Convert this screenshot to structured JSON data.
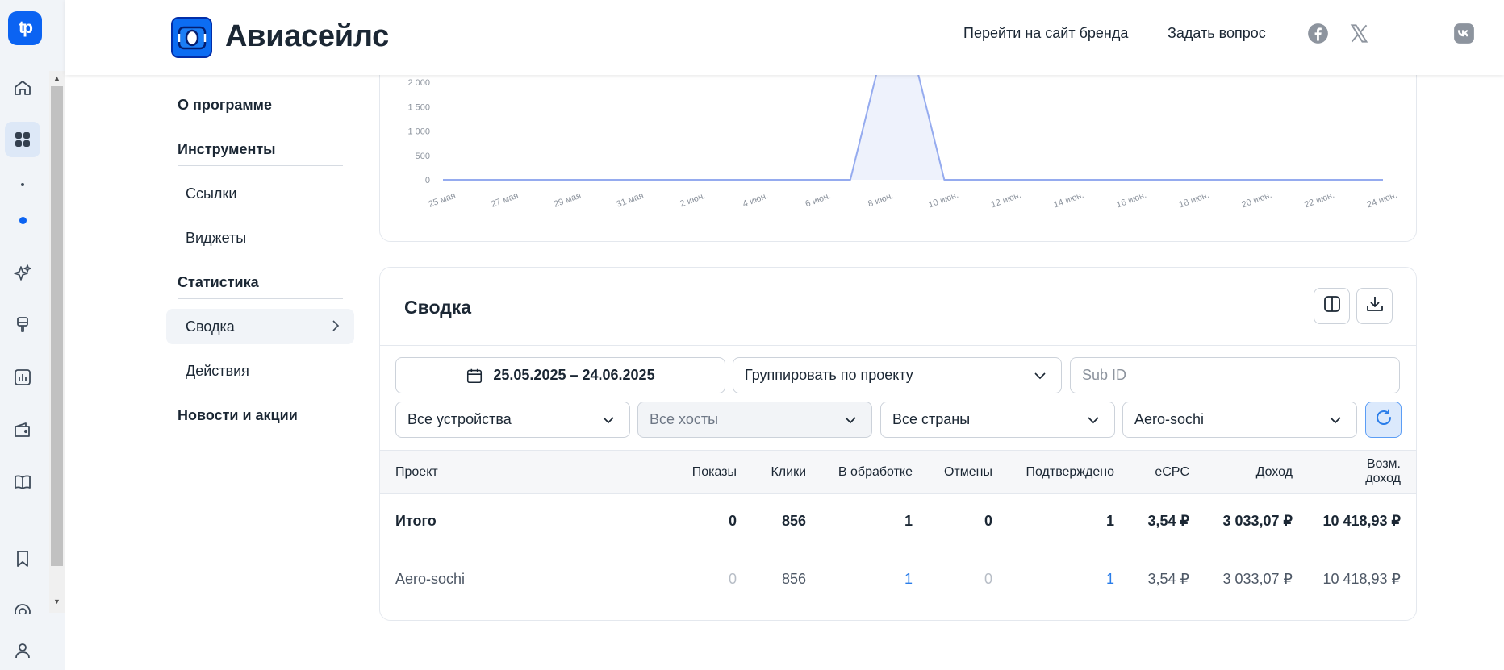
{
  "rail": {
    "logo_text": "tp",
    "icons": [
      "home-icon",
      "dashboard-icon",
      "sparkles-icon",
      "brush-icon",
      "chart-icon",
      "wallet-icon",
      "book-icon",
      "bookmark-icon",
      "lifebuoy-icon",
      "user-icon"
    ]
  },
  "header": {
    "brand": "Авиасейлс",
    "link_brand_site": "Перейти на сайт бренда",
    "link_ask": "Задать вопрос",
    "socials": [
      "facebook-icon",
      "x-icon",
      "vk-icon"
    ]
  },
  "nav": {
    "about": "О программе",
    "tools": "Инструменты",
    "links": "Ссылки",
    "widgets": "Виджеты",
    "stats": "Статистика",
    "summary": "Сводка",
    "actions": "Действия",
    "news": "Новости и акции"
  },
  "chart_data": {
    "type": "area",
    "title": "",
    "xlabel": "",
    "ylabel": "",
    "x": [
      "25 мая",
      "26 мая",
      "27 мая",
      "28 мая",
      "29 мая",
      "30 мая",
      "31 мая",
      "1 июн.",
      "2 июн.",
      "3 июн.",
      "4 июн.",
      "5 июн.",
      "6 июн.",
      "7 июн.",
      "8 июн.",
      "9 июн.",
      "10 июн.",
      "11 июн.",
      "12 июн.",
      "13 июн.",
      "14 июн.",
      "15 июн.",
      "16 июн.",
      "17 июн.",
      "18 июн.",
      "19 июн.",
      "20 июн.",
      "21 июн.",
      "22 июн.",
      "23 июн.",
      "24 июн."
    ],
    "xticks": [
      "25 мая",
      "27 мая",
      "29 мая",
      "31 мая",
      "2 июн.",
      "4 июн.",
      "6 июн.",
      "8 июн.",
      "10 июн.",
      "12 июн.",
      "14 июн.",
      "16 июн.",
      "18 июн.",
      "20 июн.",
      "22 июн.",
      "24 июн."
    ],
    "yticks": [
      "0",
      "500",
      "1 000",
      "1 500",
      "2 000"
    ],
    "ylim": [
      0,
      2000
    ],
    "series": [
      {
        "values": [
          0,
          0,
          0,
          0,
          0,
          0,
          0,
          0,
          0,
          0,
          0,
          0,
          0,
          0,
          2600,
          2600,
          0,
          0,
          0,
          0,
          0,
          0,
          0,
          0,
          0,
          0,
          0,
          0,
          0,
          0,
          0
        ]
      }
    ],
    "color": "#95abef"
  },
  "summary": {
    "title": "Сводка",
    "date_range": "25.05.2025 – 24.06.2025",
    "group_by": "Группировать по проекту",
    "subid_placeholder": "Sub ID",
    "devices": "Все устройства",
    "hosts": "Все хосты",
    "countries": "Все страны",
    "project": "Aero-sochi",
    "columns": {
      "project": "Проект",
      "shows": "Показы",
      "clicks": "Клики",
      "processing": "В обработке",
      "cancels": "Отмены",
      "confirmed": "Подтверждено",
      "ecpc": "eCPC",
      "income": "Доход",
      "possible_income_1": "Возм.",
      "possible_income_2": "доход"
    },
    "total": {
      "project": "Итого",
      "shows": "0",
      "clicks": "856",
      "processing": "1",
      "cancels": "0",
      "confirmed": "1",
      "ecpc": "3,54 ₽",
      "income": "3 033,07 ₽",
      "possible_income": "10 418,93 ₽"
    },
    "rows": [
      {
        "project": "Aero-sochi",
        "shows": "0",
        "clicks": "856",
        "processing": "1",
        "cancels": "0",
        "confirmed": "1",
        "ecpc": "3,54 ₽",
        "income": "3 033,07 ₽",
        "possible_income": "10 418,93 ₽"
      }
    ]
  }
}
